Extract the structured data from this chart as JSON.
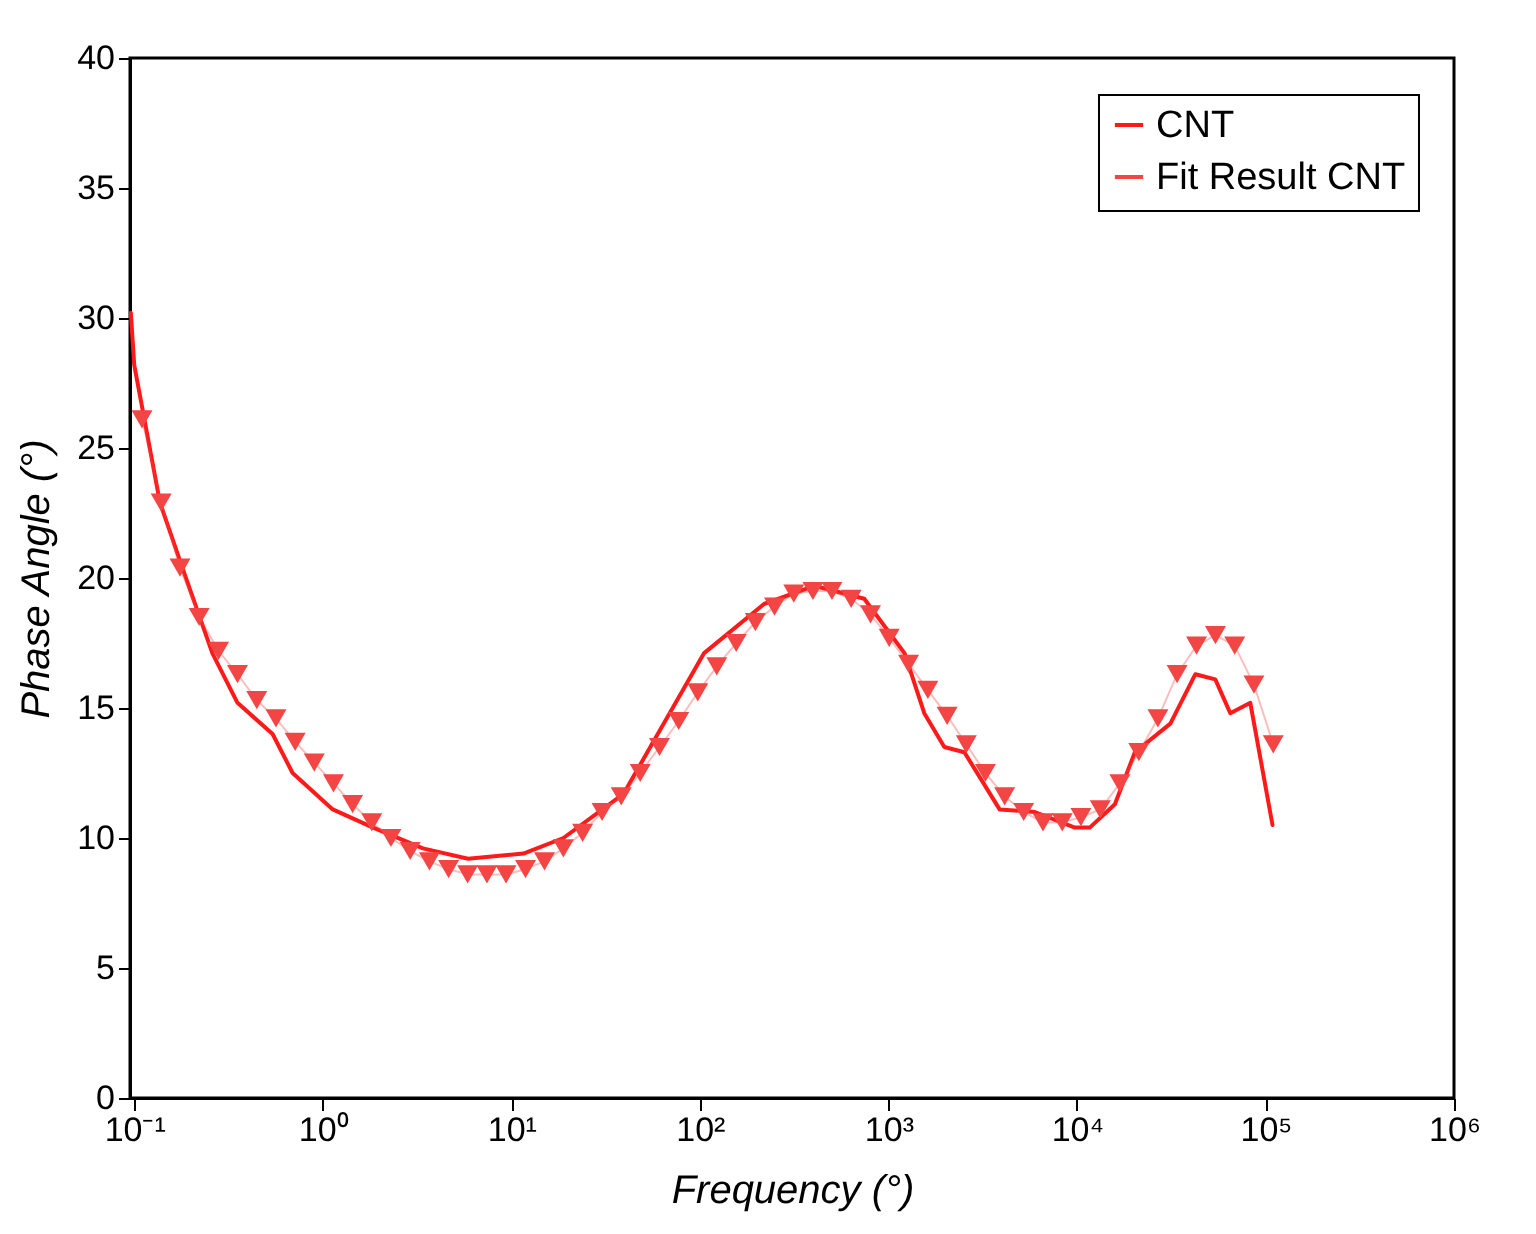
{
  "chart_data": {
    "type": "line",
    "xlabel": "Frequency (°)",
    "ylabel": "Phase Angle (°)",
    "log": "x",
    "xlim": [
      0.095,
      1000000
    ],
    "ylim": [
      0,
      40
    ],
    "xticks": [
      {
        "value": 0.1,
        "label": "10⁻¹"
      },
      {
        "value": 1,
        "label": "10⁰"
      },
      {
        "value": 10,
        "label": "10¹"
      },
      {
        "value": 100,
        "label": "10²"
      },
      {
        "value": 1000,
        "label": "10³"
      },
      {
        "value": 10000,
        "label": "10⁴"
      },
      {
        "value": 100000,
        "label": "10⁵"
      },
      {
        "value": 1000000,
        "label": "10⁶"
      }
    ],
    "yticks": [
      0,
      5,
      10,
      15,
      20,
      25,
      30,
      35,
      40
    ],
    "grid": false,
    "legend": "top right",
    "series": [
      {
        "name": "CNT",
        "color": "#ff1a1a",
        "marker": "none",
        "x": [
          0.096,
          0.1,
          0.137,
          0.18,
          0.26,
          0.353,
          0.542,
          0.692,
          1.13,
          1.85,
          3.4,
          5.9,
          11.6,
          18.9,
          39.4,
          105,
          219,
          404,
          745,
          1220,
          1550,
          1980,
          2530,
          3890,
          5980,
          9750,
          11700,
          15900,
          20300,
          31300,
          42500,
          54200,
          65100,
          83100,
          109000
        ],
        "values": [
          30.2,
          28.2,
          22.9,
          20.4,
          17.1,
          15.2,
          14.0,
          12.5,
          11.1,
          10.4,
          9.6,
          9.2,
          9.4,
          10.0,
          11.7,
          17.1,
          19.0,
          19.7,
          19.2,
          17.1,
          14.8,
          13.5,
          13.3,
          11.1,
          11.0,
          10.4,
          10.4,
          11.3,
          13.3,
          14.4,
          16.3,
          16.1,
          14.8,
          15.2,
          10.5
        ]
      },
      {
        "name": "Fit Result CNT",
        "color": "#f44545",
        "marker": "triangle",
        "x": [
          0.11,
          0.139,
          0.175,
          0.221,
          0.28,
          0.353,
          0.447,
          0.565,
          0.714,
          0.902,
          1.14,
          1.44,
          1.82,
          2.3,
          2.91,
          3.68,
          4.65,
          5.87,
          7.43,
          9.38,
          11.9,
          15,
          18.9,
          23.9,
          30.3,
          38.3,
          48.3,
          61.1,
          77.3,
          97.5,
          123,
          156,
          197,
          249,
          315,
          398,
          502,
          635,
          804,
          1010,
          1280,
          1620,
          2050,
          2590,
          3270,
          4140,
          5220,
          6610,
          8360,
          10500,
          13300,
          16900,
          21300,
          26900,
          34000,
          43100,
          54300,
          68700,
          86900,
          110000
        ],
        "values": [
          26.1,
          22.9,
          20.4,
          18.5,
          17.2,
          16.3,
          15.3,
          14.6,
          13.7,
          12.9,
          12.1,
          11.3,
          10.6,
          10.0,
          9.5,
          9.1,
          8.8,
          8.6,
          8.6,
          8.6,
          8.8,
          9.1,
          9.6,
          10.2,
          11.0,
          11.6,
          12.5,
          13.5,
          14.5,
          15.6,
          16.6,
          17.5,
          18.3,
          18.9,
          19.4,
          19.5,
          19.5,
          19.2,
          18.6,
          17.7,
          16.7,
          15.7,
          14.7,
          13.6,
          12.5,
          11.6,
          11.0,
          10.6,
          10.6,
          10.8,
          11.1,
          12.1,
          13.3,
          14.6,
          16.3,
          17.4,
          17.8,
          17.4,
          15.9,
          13.6
        ]
      }
    ]
  }
}
